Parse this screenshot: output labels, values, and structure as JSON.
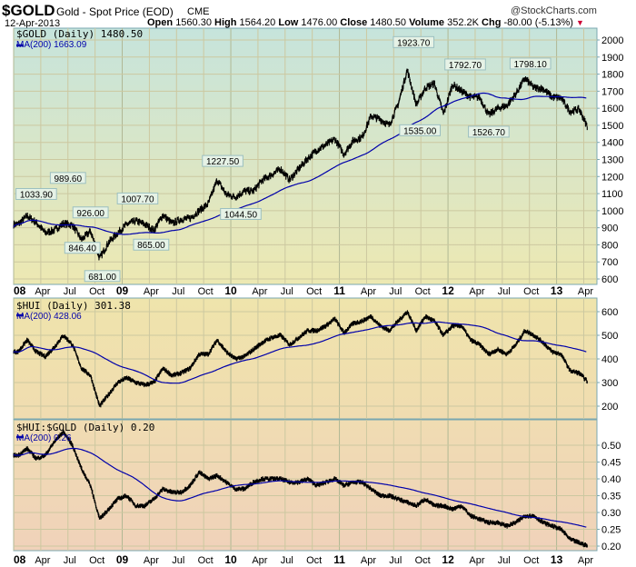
{
  "header": {
    "symbol": "$GOLD",
    "name": "Gold - Spot Price (EOD)",
    "exchange": "CME",
    "date": "12-Apr-2013",
    "copyright": "@StockCharts.com",
    "open_label": "Open",
    "open": "1560.30",
    "high_label": "High",
    "high": "1564.20",
    "low_label": "Low",
    "low": "1476.00",
    "close_label": "Close",
    "close": "1480.50",
    "volume_label": "Volume",
    "volume": "352.2K",
    "chg_label": "Chg",
    "chg": "-80.00 (-5.13%)",
    "down_color": "#cc0033"
  },
  "chart_data": [
    {
      "type": "line",
      "title": "$GOLD (Daily) 1480.50",
      "ma_label": "MA(200) 1663.09",
      "ylim": [
        600,
        2000
      ],
      "yticks": [
        "2000",
        "1900",
        "1800",
        "1700",
        "1600",
        "1500",
        "1400",
        "1300",
        "1200",
        "1100",
        "1000",
        "900",
        "800",
        "700",
        "600"
      ],
      "x_start": "Jan 2008",
      "x_step": "month",
      "values": [
        920,
        970,
        930,
        870,
        885,
        925,
        915,
        830,
        880,
        720,
        815,
        870,
        920,
        940,
        920,
        885,
        975,
        925,
        950,
        955,
        1000,
        1040,
        1180,
        1095,
        1080,
        1115,
        1115,
        1180,
        1210,
        1245,
        1180,
        1245,
        1305,
        1355,
        1385,
        1420,
        1330,
        1410,
        1430,
        1555,
        1535,
        1500,
        1625,
        1825,
        1620,
        1720,
        1745,
        1565,
        1740,
        1700,
        1665,
        1665,
        1560,
        1600,
        1615,
        1685,
        1775,
        1720,
        1715,
        1665,
        1660,
        1580,
        1595,
        1480.5
      ],
      "annotations": [
        {
          "label": "1033.90",
          "month": 2.5,
          "value": 1033.9,
          "kind": "high"
        },
        {
          "label": "989.60",
          "month": 6.0,
          "value": 989.6,
          "kind": "high"
        },
        {
          "label": "926.00",
          "month": 8.5,
          "value": 926.0,
          "kind": "high"
        },
        {
          "label": "846.40",
          "month": 7.6,
          "value": 846.4,
          "kind": "low"
        },
        {
          "label": "681.00",
          "month": 9.8,
          "value": 681.0,
          "kind": "low"
        },
        {
          "label": "1007.70",
          "month": 13.7,
          "value": 1007.7,
          "kind": "high"
        },
        {
          "label": "865.00",
          "month": 15.2,
          "value": 865.0,
          "kind": "low"
        },
        {
          "label": "1227.50",
          "month": 23.1,
          "value": 1227.5,
          "kind": "high"
        },
        {
          "label": "1044.50",
          "month": 25.1,
          "value": 1044.5,
          "kind": "low"
        },
        {
          "label": "1923.70",
          "month": 44.2,
          "value": 1923.7,
          "kind": "high"
        },
        {
          "label": "1535.00",
          "month": 44.9,
          "value": 1535.0,
          "kind": "low"
        },
        {
          "label": "1792.70",
          "month": 49.9,
          "value": 1792.7,
          "kind": "high"
        },
        {
          "label": "1526.70",
          "month": 52.5,
          "value": 1526.7,
          "kind": "low"
        },
        {
          "label": "1798.10",
          "month": 57.1,
          "value": 1798.1,
          "kind": "high"
        }
      ]
    },
    {
      "type": "line",
      "title": "$HUI (Daily) 301.38",
      "ma_label": "MA(200) 428.06",
      "ylim": [
        160,
        650
      ],
      "yticks": [
        "600",
        "500",
        "400",
        "300",
        "200"
      ],
      "values": [
        430,
        480,
        430,
        410,
        450,
        500,
        460,
        360,
        330,
        200,
        250,
        300,
        320,
        300,
        290,
        300,
        360,
        330,
        340,
        360,
        420,
        420,
        480,
        430,
        400,
        410,
        440,
        470,
        490,
        500,
        460,
        490,
        520,
        520,
        540,
        570,
        510,
        550,
        560,
        580,
        540,
        520,
        560,
        600,
        520,
        580,
        560,
        500,
        540,
        540,
        480,
        460,
        420,
        440,
        420,
        460,
        520,
        500,
        470,
        430,
        420,
        350,
        340,
        301.38
      ]
    },
    {
      "type": "line",
      "title": "$HUI:$GOLD (Daily) 0.20",
      "ma_label": "MA(200) 0.26",
      "ylim": [
        0.19,
        0.52
      ],
      "yticks": [
        "0.50",
        "0.45",
        "0.40",
        "0.35",
        "0.30",
        "0.25",
        "0.20"
      ],
      "values": [
        0.47,
        0.49,
        0.46,
        0.47,
        0.51,
        0.54,
        0.5,
        0.43,
        0.38,
        0.28,
        0.31,
        0.34,
        0.35,
        0.32,
        0.32,
        0.34,
        0.37,
        0.36,
        0.36,
        0.38,
        0.42,
        0.4,
        0.41,
        0.39,
        0.37,
        0.37,
        0.39,
        0.4,
        0.4,
        0.4,
        0.39,
        0.39,
        0.4,
        0.38,
        0.39,
        0.4,
        0.38,
        0.39,
        0.39,
        0.37,
        0.35,
        0.35,
        0.34,
        0.33,
        0.32,
        0.34,
        0.32,
        0.32,
        0.31,
        0.32,
        0.29,
        0.28,
        0.27,
        0.27,
        0.26,
        0.27,
        0.29,
        0.29,
        0.27,
        0.26,
        0.25,
        0.22,
        0.21,
        0.2
      ]
    }
  ],
  "xaxis": {
    "labels": [
      "08",
      "Apr",
      "Jul",
      "Oct",
      "09",
      "Apr",
      "Jul",
      "Oct",
      "10",
      "Apr",
      "Jul",
      "Oct",
      "11",
      "Apr",
      "Jul",
      "Oct",
      "12",
      "Apr",
      "Jul",
      "Oct",
      "13",
      "Apr"
    ]
  },
  "colors": {
    "price": "#000000",
    "ma": "#0000aa",
    "grid": "#c8c8a0",
    "border": "#7aa7b0"
  }
}
